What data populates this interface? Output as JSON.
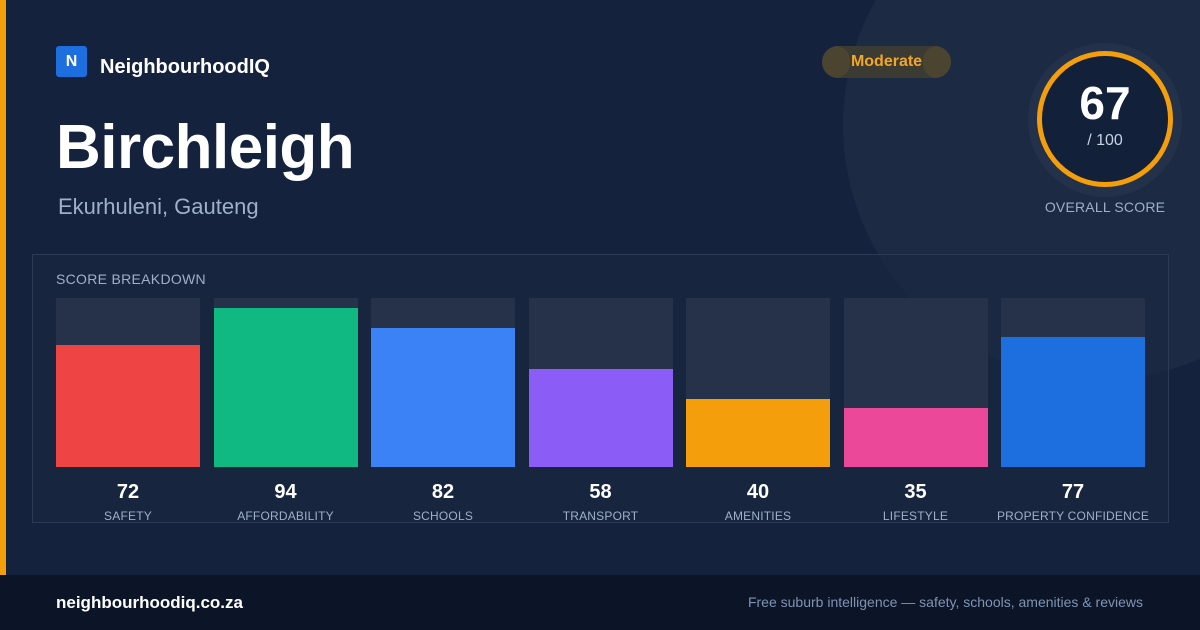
{
  "brand": {
    "logo_letter": "N",
    "name": "NeighbourhoodIQ",
    "logo_color": "#1d6fe0",
    "accent_color": "#f59e0b"
  },
  "suburb": {
    "name": "Birchleigh",
    "region": "Ekurhuleni, Gauteng"
  },
  "rating": {
    "label": "Moderate",
    "color": "#f5a623"
  },
  "overall": {
    "score": "67",
    "max": "/ 100",
    "label": "OVERALL SCORE"
  },
  "breakdown": {
    "title": "SCORE BREAKDOWN",
    "max": 100
  },
  "chart_data": {
    "type": "bar",
    "categories": [
      "SAFETY",
      "AFFORDABILITY",
      "SCHOOLS",
      "TRANSPORT",
      "AMENITIES",
      "LIFESTYLE",
      "PROPERTY CONFIDENCE"
    ],
    "values": [
      72,
      94,
      82,
      58,
      40,
      35,
      77
    ],
    "colors": [
      "#ef4444",
      "#10b981",
      "#3b82f6",
      "#8b5cf6",
      "#f59e0b",
      "#ec4899",
      "#1d6fe0"
    ],
    "ylim": [
      0,
      100
    ]
  },
  "footer": {
    "url": "neighbourhoodiq.co.za",
    "tagline": "Free suburb intelligence — safety, schools, amenities & reviews"
  }
}
